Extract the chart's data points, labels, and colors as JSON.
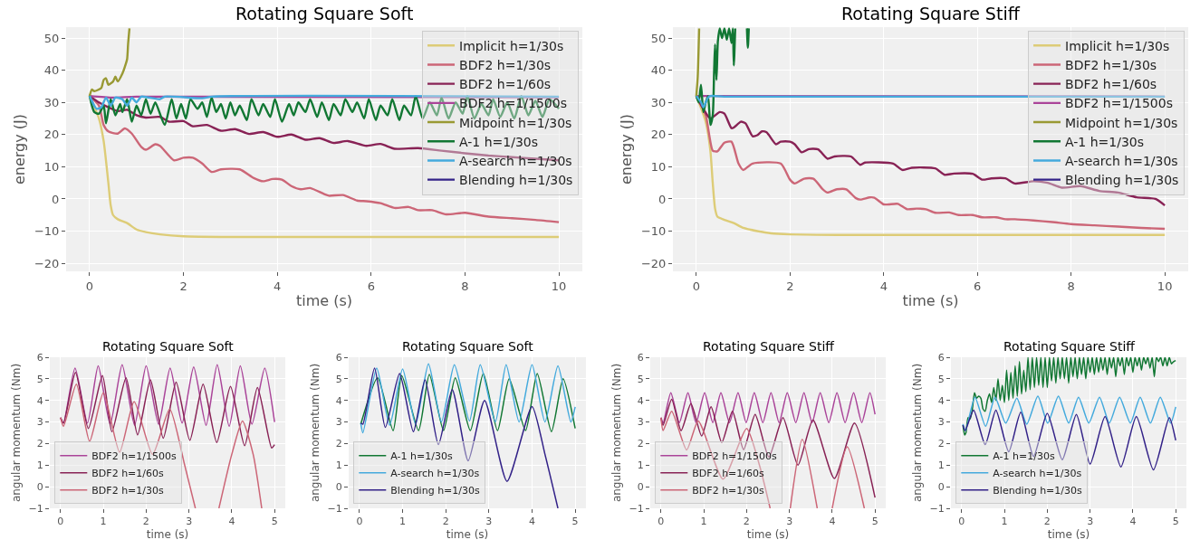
{
  "chart_data": [
    {
      "type": "line",
      "title": "Rotating Square Soft",
      "xlabel": "time (s)",
      "ylabel": "energy (J)",
      "xlim": [
        -0.5,
        10.5
      ],
      "ylim": [
        -22.5,
        53.4
      ],
      "xticks": [
        0,
        2,
        4,
        6,
        8,
        10
      ],
      "yticks": [
        {
          "value": -20,
          "label": "−20"
        },
        {
          "value": -10,
          "label": "−10"
        },
        0,
        10,
        20,
        30,
        40,
        50
      ],
      "grid": true,
      "legend": "top right",
      "series": [
        {
          "name": "Implicit h=1/30s",
          "color": "#ddcc77",
          "x": [
            0,
            0.2,
            0.3,
            0.4,
            0.45,
            0.5,
            0.6,
            0.8,
            1,
            1.2,
            1.5,
            2,
            3,
            10
          ],
          "values": [
            32,
            25,
            18,
            5,
            -2,
            -5,
            -6.3,
            -7.5,
            -9.5,
            -10.3,
            -11,
            -11.6,
            -11.8,
            -11.8
          ]
        },
        {
          "name": "BDF2 h=1/30s",
          "color": "#cc6677",
          "x": [
            0,
            0.2,
            0.3,
            0.4,
            0.6,
            0.75,
            0.9,
            1.1,
            1.2,
            1.4,
            1.5,
            1.8,
            2,
            2.2,
            2.4,
            2.6,
            2.8,
            3.2,
            3.5,
            3.7,
            3.9,
            4.1,
            4.3,
            4.5,
            4.7,
            5,
            5.1,
            5.4,
            5.7,
            5.9,
            6.2,
            6.5,
            6.8,
            7,
            7.3,
            7.6,
            8,
            8.5,
            9,
            9.5,
            10
          ],
          "values": [
            32,
            29,
            23,
            21,
            20.3,
            21.9,
            20.3,
            16.2,
            15.3,
            17,
            16.5,
            12,
            12.8,
            12.8,
            11,
            8.4,
            9.2,
            9.2,
            6.5,
            5.5,
            6.2,
            6,
            4,
            3,
            3.4,
            1.5,
            1,
            1.2,
            -0.5,
            -0.7,
            -1.3,
            -2.8,
            -2.5,
            -3.5,
            -3.5,
            -4.8,
            -4.3,
            -5.5,
            -6,
            -6.5,
            -7.2
          ]
        },
        {
          "name": "BDF2 h=1/60s",
          "color": "#882255",
          "x": [
            0,
            0.2,
            0.4,
            0.6,
            0.8,
            1,
            1.2,
            1.5,
            1.7,
            2,
            2.2,
            2.5,
            2.8,
            3.1,
            3.4,
            3.7,
            4,
            4.3,
            4.6,
            4.9,
            5.2,
            5.5,
            5.9,
            6.2,
            6.5,
            7,
            7.5,
            8,
            8.5,
            9,
            9.5,
            10
          ],
          "values": [
            32,
            30,
            28.5,
            27.3,
            27.7,
            26,
            25.3,
            25.5,
            24,
            24.2,
            22.6,
            23,
            21.2,
            21.7,
            20.2,
            20.8,
            19.3,
            20,
            18.4,
            18.9,
            17.4,
            18,
            16.5,
            17.1,
            15.6,
            15.8,
            15,
            14.2,
            13.5,
            13,
            12.5,
            12
          ]
        },
        {
          "name": "BDF2 h=1/1500s",
          "color": "#aa4499",
          "x": [
            0,
            0.5,
            1,
            10
          ],
          "values": [
            32,
            31.5,
            31.8,
            31.6
          ]
        },
        {
          "name": "Midpoint h=1/30s",
          "color": "#999933",
          "x": [
            0,
            0.05,
            0.1,
            0.25,
            0.3,
            0.35,
            0.4,
            0.5,
            0.55,
            0.6,
            0.7,
            0.75,
            0.8,
            0.82,
            0.85
          ],
          "values": [
            32,
            34,
            33.5,
            34.5,
            37,
            37.5,
            35.5,
            36.5,
            38,
            36.5,
            39,
            41,
            43.5,
            48,
            53
          ]
        },
        {
          "name": "A-1 h=1/30s",
          "color": "#117733",
          "x": [
            0,
            0.1,
            0.2,
            0.3,
            0.35,
            0.45,
            0.55,
            0.65,
            0.7,
            0.8,
            0.9,
            1,
            1.1,
            1.2,
            1.3,
            1.4,
            1.6,
            1.75,
            1.85,
            1.95,
            2.05,
            2.15,
            2.3,
            2.4,
            2.5,
            2.6,
            2.7,
            2.8,
            2.9,
            3,
            3.1,
            3.2,
            3.35,
            3.45,
            3.6,
            3.7,
            3.85,
            3.95,
            4.1,
            4.25,
            4.35,
            4.45,
            4.6,
            4.7,
            4.85,
            4.95,
            5.1,
            5.2,
            5.35,
            5.45,
            5.6,
            5.7,
            5.85,
            5.95,
            6.1,
            6.2,
            6.35,
            6.45,
            6.6,
            6.7,
            6.85,
            6.95,
            7.1,
            7.25,
            7.4,
            7.5,
            7.65,
            7.8,
            7.95,
            8.05,
            8.2,
            8.35,
            8.5,
            8.6,
            8.75,
            8.9,
            9.05,
            9.2,
            9.35,
            9.5,
            9.65,
            9.8,
            10
          ],
          "values": [
            32,
            27,
            26.5,
            29,
            23.5,
            31,
            26,
            29.5,
            27,
            31,
            24,
            29,
            26,
            31,
            26.5,
            30,
            23,
            31,
            25,
            29.5,
            25,
            31,
            28,
            30,
            25.5,
            31.5,
            27,
            29.5,
            25,
            30,
            26,
            29,
            24.5,
            31,
            26,
            29.5,
            25.5,
            31,
            24,
            29.5,
            26,
            30,
            27,
            31,
            25.5,
            30,
            24.5,
            29.5,
            26,
            31,
            27,
            30,
            25,
            31,
            24.5,
            29,
            26,
            31,
            24.5,
            29,
            26,
            32,
            25,
            30,
            26,
            31.5,
            25,
            30,
            26.5,
            32,
            25,
            29.5,
            26,
            31,
            25.5,
            30,
            25,
            32,
            26,
            30.5,
            25.5,
            31,
            28
          ]
        },
        {
          "name": "A-search h=1/30s",
          "color": "#44aadd",
          "x": [
            0,
            0.1,
            0.15,
            0.25,
            0.35,
            0.45,
            0.55,
            0.7,
            0.8,
            0.9,
            1,
            1.1,
            1.5,
            1.6,
            2.4,
            2.6,
            10
          ],
          "values": [
            32,
            29,
            28,
            28.5,
            31.5,
            29,
            31.5,
            31,
            29,
            31.5,
            30,
            31.8,
            31,
            31.8,
            31.3,
            31.8,
            31.8
          ]
        },
        {
          "name": "Blending h=1/30s",
          "color": "#332288",
          "values": [
            null
          ]
        }
      ]
    },
    {
      "type": "line",
      "title": "Rotating Square Stiff",
      "xlabel": "time (s)",
      "ylabel": "energy (J)",
      "xlim": [
        -0.5,
        10.5
      ],
      "ylim": [
        -22.5,
        53.4
      ],
      "xticks": [
        0,
        2,
        4,
        6,
        8,
        10
      ],
      "yticks": [
        {
          "value": -20,
          "label": "−20"
        },
        {
          "value": -10,
          "label": "−10"
        },
        0,
        10,
        20,
        30,
        40,
        50
      ],
      "grid": true,
      "legend": "top right",
      "series": [
        {
          "name": "Implicit h=1/30s",
          "color": "#ddcc77",
          "x": [
            0,
            0.2,
            0.3,
            0.35,
            0.4,
            0.45,
            0.6,
            0.8,
            1,
            1.3,
            1.6,
            2,
            3,
            10
          ],
          "values": [
            32,
            24,
            15,
            5,
            -3,
            -5.5,
            -6.5,
            -7.5,
            -9,
            -10,
            -10.7,
            -11,
            -11.2,
            -11.2
          ]
        },
        {
          "name": "BDF2 h=1/30s",
          "color": "#cc6677",
          "x": [
            0,
            0.2,
            0.35,
            0.45,
            0.6,
            0.75,
            0.9,
            1,
            1.2,
            1.8,
            2,
            2.1,
            2.3,
            2.5,
            2.7,
            2.8,
            3,
            3.2,
            3.4,
            3.5,
            3.7,
            3.8,
            4,
            4.1,
            4.3,
            4.5,
            4.7,
            4.9,
            5.1,
            5.4,
            5.6,
            5.9,
            6.1,
            6.4,
            6.6,
            6.8,
            7.2,
            7.6,
            8,
            8.5,
            9,
            9.5,
            10
          ],
          "values": [
            32,
            26,
            15,
            14.8,
            17.5,
            17.8,
            11,
            9,
            11,
            11,
            6,
            4.8,
            6.3,
            6.3,
            3,
            2,
            3,
            3,
            0.3,
            -0.2,
            0.5,
            0.4,
            -1.7,
            -1.7,
            -1.5,
            -3.2,
            -3,
            -3.2,
            -4.3,
            -4.2,
            -5,
            -5,
            -5.7,
            -5.7,
            -6.3,
            -6.3,
            -6.7,
            -7.2,
            -7.8,
            -8.2,
            -8.6,
            -9,
            -9.3
          ]
        },
        {
          "name": "BDF2 h=1/60s",
          "color": "#882255",
          "x": [
            0,
            0.15,
            0.3,
            0.5,
            0.6,
            0.75,
            0.8,
            0.95,
            1.05,
            1.2,
            1.3,
            1.4,
            1.5,
            1.7,
            1.8,
            2,
            2.1,
            2.25,
            2.4,
            2.6,
            2.8,
            2.95,
            3.3,
            3.5,
            3.6,
            4.2,
            4.4,
            4.6,
            5.1,
            5.3,
            5.5,
            5.9,
            6.1,
            6.3,
            6.6,
            6.8,
            7.2,
            7.5,
            7.8,
            8.2,
            8.6,
            9,
            9.4,
            9.8,
            10
          ],
          "values": [
            32,
            28,
            25,
            27,
            26.5,
            22,
            22.2,
            24,
            23.5,
            19.5,
            19.8,
            21,
            20.7,
            17,
            17.8,
            17.8,
            17,
            14.5,
            15.5,
            15.4,
            12.5,
            13.2,
            13.2,
            10.6,
            11.3,
            11,
            9,
            9.7,
            9.5,
            7.5,
            7.9,
            7.8,
            6,
            6.4,
            6.4,
            4.8,
            5.5,
            5,
            3.5,
            4,
            2.5,
            2,
            0.5,
            0,
            -2
          ]
        },
        {
          "name": "BDF2 h=1/1500s",
          "color": "#aa4499",
          "x": [
            0,
            10
          ],
          "values": [
            32,
            31.8
          ]
        },
        {
          "name": "Midpoint h=1/30s",
          "color": "#999933",
          "x": [
            0,
            0.03,
            0.06
          ],
          "values": [
            32,
            38,
            53
          ]
        },
        {
          "name": "A-1 h=1/30s",
          "color": "#117733",
          "x": [
            0,
            0.05,
            0.1,
            0.15,
            0.2,
            0.25,
            0.3,
            0.35,
            0.38,
            0.4,
            0.43,
            0.46,
            0.5,
            0.55,
            0.6,
            0.65,
            0.7,
            0.75,
            0.78,
            0.8,
            0.83,
            0.95,
            1.08,
            1.1,
            1.12
          ],
          "values": [
            32,
            30,
            35.5,
            27,
            30,
            32,
            23,
            26,
            40,
            48,
            37,
            49,
            53,
            50,
            53,
            49.5,
            53,
            48.5,
            53,
            41.5,
            53,
            null,
            53,
            47,
            53
          ]
        },
        {
          "name": "A-search h=1/30s",
          "color": "#44aadd",
          "x": [
            0,
            0.1,
            0.15,
            0.2,
            0.25,
            0.3,
            0.6,
            10
          ],
          "values": [
            32,
            30,
            28.5,
            30,
            31.5,
            32,
            31.8,
            31.8
          ]
        },
        {
          "name": "Blending h=1/30s",
          "color": "#332288",
          "values": [
            null
          ]
        }
      ]
    },
    {
      "type": "line",
      "title": "Rotating Square Soft",
      "xlabel": "time (s)",
      "ylabel": "angular momentum (Nm)",
      "xlim": [
        -0.25,
        5.25
      ],
      "ylim": [
        -1,
        6
      ],
      "xticks": [
        0,
        1,
        2,
        3,
        4,
        5
      ],
      "yticks": [
        {
          "value": -1,
          "label": "−1"
        },
        0,
        1,
        2,
        3,
        4,
        5,
        6
      ],
      "grid": true,
      "legend": "bottom left",
      "series": [
        {
          "name": "BDF2 h=1/1500s",
          "color": "#aa4499",
          "x": [
            0,
            0.07,
            0.34,
            0.63,
            0.88,
            1.16,
            1.44,
            1.73,
            2.0,
            2.29,
            2.56,
            2.84,
            3.11,
            3.4,
            3.66,
            3.94,
            4.2,
            4.47,
            4.77,
            5
          ],
          "values": [
            3.2,
            2.95,
            5.5,
            2.95,
            5.6,
            2.9,
            5.65,
            2.85,
            5.6,
            2.9,
            5.5,
            2.95,
            5.55,
            2.85,
            5.65,
            2.8,
            5.6,
            2.9,
            5.5,
            3
          ]
        },
        {
          "name": "BDF2 h=1/60s",
          "color": "#882255",
          "x": [
            0,
            0.07,
            0.35,
            0.65,
            0.98,
            1.2,
            1.53,
            1.8,
            2.1,
            2.4,
            2.7,
            3.02,
            3.33,
            3.65,
            3.97,
            4.3,
            4.6,
            4.93,
            5
          ],
          "values": [
            3.2,
            2.95,
            5.3,
            2.7,
            5.15,
            2.55,
            5.05,
            2.4,
            4.95,
            2.25,
            4.85,
            2.15,
            4.75,
            2.05,
            4.65,
            1.9,
            4.6,
            1.8,
            1.95
          ]
        },
        {
          "name": "BDF2 h=1/30s",
          "color": "#cc6677",
          "x": [
            0,
            0.07,
            0.37,
            0.68,
            1.0,
            1.38,
            1.72,
            2.15,
            2.55,
            2.9,
            3.15,
            3.42,
            3.7,
            4.0,
            4.25,
            4.5,
            4.7
          ],
          "values": [
            3.2,
            2.8,
            4.75,
            2.1,
            4.35,
            1.6,
            3.95,
            1.5,
            3.6,
            1.0,
            -1,
            null,
            -1,
            1.5,
            3.05,
            1.5,
            -1
          ]
        }
      ]
    },
    {
      "type": "line",
      "title": "Rotating Square Soft",
      "xlabel": "time (s)",
      "ylabel": "angular momentum (Nm)",
      "xlim": [
        -0.25,
        5.25
      ],
      "ylim": [
        -1,
        6
      ],
      "xticks": [
        0,
        1,
        2,
        3,
        4,
        5
      ],
      "yticks": [
        {
          "value": -1,
          "label": "−1"
        },
        0,
        1,
        2,
        3,
        4,
        5,
        6
      ],
      "grid": true,
      "legend": "bottom left",
      "series": [
        {
          "name": "A-1 h=1/30s",
          "color": "#117733",
          "x": [
            0.03,
            0.42,
            0.78,
            0.98,
            1.37,
            1.62,
            1.95,
            2.22,
            2.57,
            2.87,
            3.2,
            3.47,
            3.85,
            4.12,
            4.45,
            4.72,
            5
          ],
          "values": [
            2.9,
            5.05,
            2.6,
            5.15,
            2.6,
            5.2,
            2.6,
            5.05,
            2.6,
            5.25,
            2.6,
            5.0,
            2.6,
            5.25,
            2.55,
            5.0,
            2.7
          ]
        },
        {
          "name": "A-search h=1/30s",
          "color": "#44aadd",
          "x": [
            0.03,
            0.08,
            0.4,
            0.7,
            1.0,
            1.3,
            1.6,
            1.9,
            2.2,
            2.55,
            2.8,
            3.15,
            3.4,
            3.7,
            4.0,
            4.3,
            4.6,
            4.9,
            5
          ],
          "values": [
            2.95,
            2.5,
            5.5,
            2.85,
            5.45,
            2.9,
            5.7,
            3.0,
            5.65,
            3.05,
            5.65,
            3.0,
            5.65,
            3.0,
            5.65,
            3.0,
            5.6,
            3.0,
            3.7
          ]
        },
        {
          "name": "Blending h=1/30s",
          "color": "#332288",
          "x": [
            0.03,
            0.08,
            0.35,
            0.6,
            0.93,
            1.25,
            1.52,
            1.83,
            2.15,
            2.52,
            2.9,
            3.42,
            4.0,
            4.3,
            4.6
          ],
          "values": [
            2.95,
            2.9,
            5.5,
            2.75,
            5.25,
            2.55,
            4.95,
            1.95,
            4.5,
            1.2,
            4.0,
            0.25,
            3.72,
            1.5,
            -1
          ]
        }
      ]
    },
    {
      "type": "line",
      "title": "Rotating Square Stiff",
      "xlabel": "time (s)",
      "ylabel": "angular momentum (Nm)",
      "xlim": [
        -0.25,
        5.25
      ],
      "ylim": [
        -1,
        6
      ],
      "xticks": [
        0,
        1,
        2,
        3,
        4,
        5
      ],
      "yticks": [
        {
          "value": -1,
          "label": "−1"
        },
        0,
        1,
        2,
        3,
        4,
        5,
        6
      ],
      "grid": true,
      "legend": "bottom left",
      "series": [
        {
          "name": "BDF2 h=1/1500s",
          "color": "#aa4499",
          "x": [
            0,
            0.05,
            0.23,
            0.43,
            0.63,
            0.82,
            1.02,
            1.21,
            1.4,
            1.6,
            1.8,
            1.99,
            2.18,
            2.38,
            2.57,
            2.76,
            2.95,
            3.15,
            3.34,
            3.53,
            3.72,
            3.92,
            4.11,
            4.3,
            4.5,
            4.69,
            4.88,
            5
          ],
          "values": [
            3.2,
            2.95,
            4.35,
            2.97,
            4.35,
            2.97,
            4.35,
            2.97,
            4.35,
            2.97,
            4.35,
            2.97,
            4.35,
            2.97,
            4.35,
            2.97,
            4.35,
            2.97,
            4.35,
            2.97,
            4.35,
            2.97,
            4.35,
            2.97,
            4.35,
            2.97,
            4.35,
            3.35
          ]
        },
        {
          "name": "BDF2 h=1/60s",
          "color": "#882255",
          "x": [
            0,
            0.05,
            0.25,
            0.47,
            0.7,
            0.95,
            1.17,
            1.42,
            1.67,
            1.93,
            2.2,
            2.52,
            2.85,
            3.2,
            3.55,
            4.05,
            4.52,
            5
          ],
          "values": [
            3.2,
            2.85,
            4.05,
            2.6,
            3.85,
            2.35,
            3.7,
            2.05,
            3.5,
            1.72,
            3.35,
            1.38,
            3.2,
            1.0,
            3.1,
            0.38,
            2.95,
            -0.5
          ]
        },
        {
          "name": "BDF2 h=1/30s",
          "color": "#cc6677",
          "x": [
            0,
            0.05,
            0.25,
            0.6,
            0.87,
            1.45,
            2.0,
            2.3,
            2.55,
            2.8,
            3.02,
            3.3,
            3.65,
            3.82,
            4.0,
            4.35,
            4.75
          ],
          "values": [
            3.2,
            2.6,
            3.5,
            1.7,
            3.05,
            0.35,
            2.7,
            1.0,
            -1,
            null,
            -1,
            2.2,
            -1,
            null,
            -1,
            1.85,
            -1
          ]
        }
      ]
    },
    {
      "type": "line",
      "title": "Rotating Square Stiff",
      "xlabel": "time (s)",
      "ylabel": "angular momentum (Nm)",
      "xlim": [
        -0.25,
        5.25
      ],
      "ylim": [
        -1,
        6
      ],
      "xticks": [
        0,
        1,
        2,
        3,
        4,
        5
      ],
      "yticks": [
        {
          "value": -1,
          "label": "−1"
        },
        0,
        1,
        2,
        3,
        4,
        5,
        6
      ],
      "grid": true,
      "legend": "bottom left",
      "series": [
        {
          "name": "A-1 h=1/30s",
          "color": "#117733",
          "x": [
            0.03,
            0.07,
            0.1,
            0.15,
            0.2,
            0.25,
            0.3,
            0.35,
            0.4,
            0.45,
            0.5,
            0.55,
            0.6,
            0.65,
            0.7,
            0.75,
            0.8,
            0.85,
            0.9,
            0.95,
            1.0,
            1.05,
            1.1,
            1.15,
            1.2,
            1.25,
            1.3,
            1.35,
            1.4,
            1.45,
            1.5,
            1.55,
            1.6,
            1.65,
            1.7,
            1.75,
            1.8,
            1.85,
            1.9,
            1.95,
            2.0,
            2.05,
            2.1,
            2.15,
            2.2,
            2.25,
            2.3,
            2.35,
            2.4,
            2.45,
            2.5,
            2.55,
            2.6,
            2.65,
            2.7,
            2.75,
            2.8,
            2.85,
            2.9,
            2.95,
            3.0,
            3.05,
            3.1,
            3.15,
            3.2,
            3.25,
            3.3,
            3.35,
            3.4,
            3.45,
            3.5,
            3.55,
            3.6,
            3.65,
            3.7,
            3.75,
            3.8,
            3.85,
            3.9,
            3.95,
            4.0,
            4.05,
            4.1,
            4.15,
            4.2,
            4.25,
            4.3,
            4.35,
            4.4,
            4.45,
            4.5,
            4.55,
            4.6,
            4.65,
            4.7,
            4.75,
            4.8,
            4.85,
            4.9,
            4.95,
            5.0
          ],
          "values": [
            2.85,
            2.4,
            2.5,
            3.2,
            3.15,
            3.6,
            4.35,
            4.1,
            4.2,
            4.1,
            3.6,
            3.5,
            4.0,
            4.3,
            3.9,
            4.6,
            4.0,
            5.0,
            4.0,
            4.7,
            3.9,
            5.4,
            4.0,
            5.3,
            4.1,
            5.6,
            4.2,
            5.8,
            4.3,
            5.4,
            4.4,
            6,
            4.5,
            6,
            4.6,
            6,
            4.7,
            6,
            4.6,
            6,
            4.6,
            6,
            4.9,
            6,
            4.8,
            6,
            5.0,
            6,
            5.0,
            6,
            4.8,
            6,
            5.1,
            6,
            5.0,
            6,
            5.2,
            6,
            5.0,
            6,
            5.3,
            6,
            5.2,
            6,
            5.3,
            6,
            5.4,
            6,
            5.2,
            6,
            5.5,
            6,
            5.1,
            6,
            5.6,
            6,
            5.2,
            6,
            5.6,
            6,
            5.3,
            6,
            5.6,
            6,
            5.4,
            6,
            5.7,
            6,
            5.5,
            6,
            5.1,
            6,
            5.8,
            6,
            5.6,
            6,
            5.6,
            6,
            5.7,
            5.8,
            5.85
          ]
        },
        {
          "name": "A-search h=1/30s",
          "color": "#44aadd",
          "x": [
            0.03,
            0.09,
            0.31,
            0.56,
            0.78,
            1.03,
            1.29,
            1.52,
            1.78,
            2.01,
            2.26,
            2.5,
            2.73,
            2.97,
            3.22,
            3.45,
            3.69,
            3.94,
            4.17,
            4.41,
            4.64,
            4.88,
            5
          ],
          "values": [
            2.9,
            2.6,
            4.15,
            2.8,
            4.15,
            2.95,
            4.1,
            2.9,
            4.2,
            2.95,
            4.2,
            2.95,
            4.15,
            2.95,
            4.15,
            2.95,
            4.15,
            2.95,
            4.15,
            2.95,
            4.15,
            2.95,
            3.7
          ]
        },
        {
          "name": "Blending h=1/30s",
          "color": "#332288",
          "x": [
            0.03,
            0.08,
            0.28,
            0.55,
            0.8,
            1.1,
            1.38,
            1.68,
            2.0,
            2.35,
            2.68,
            3.0,
            3.35,
            3.72,
            4.08,
            4.48,
            4.85,
            5
          ],
          "values": [
            2.85,
            2.6,
            3.55,
            1.95,
            3.55,
            1.62,
            3.45,
            1.4,
            3.4,
            1.25,
            3.35,
            1.05,
            3.25,
            0.92,
            3.25,
            0.78,
            3.2,
            2.15
          ]
        }
      ]
    }
  ]
}
